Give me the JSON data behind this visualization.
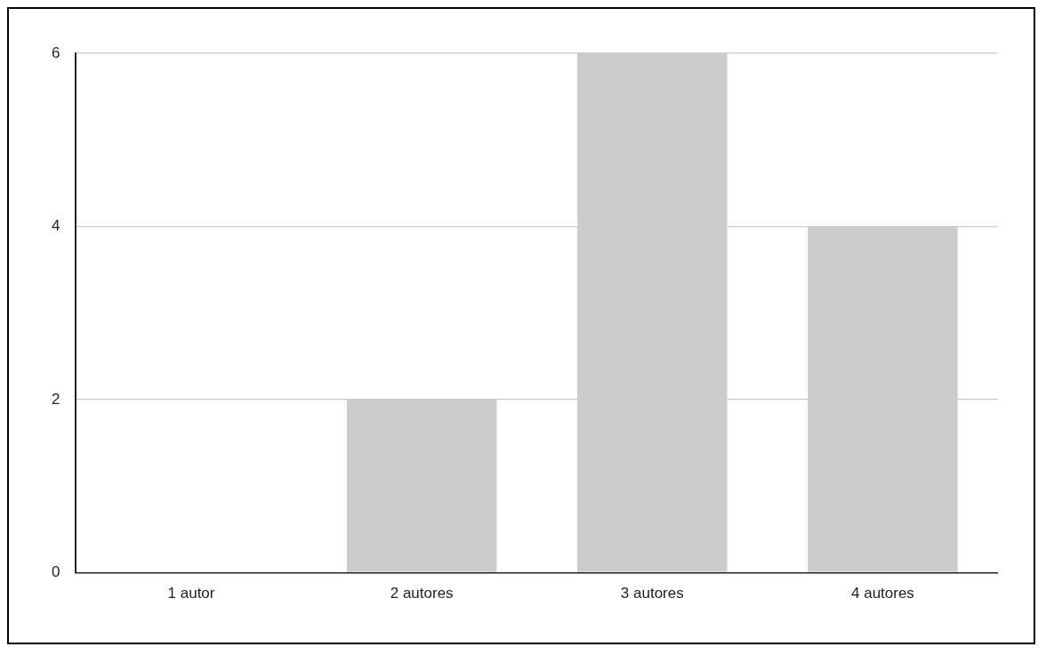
{
  "chart_data": {
    "type": "bar",
    "categories": [
      "1 autor",
      "2 autores",
      "3 autores",
      "4 autores"
    ],
    "values": [
      0,
      2,
      6,
      4
    ],
    "color": "#cccccc",
    "ylim": [
      0,
      6
    ],
    "yticks": [
      0,
      2,
      4,
      6
    ],
    "grid": "y"
  }
}
